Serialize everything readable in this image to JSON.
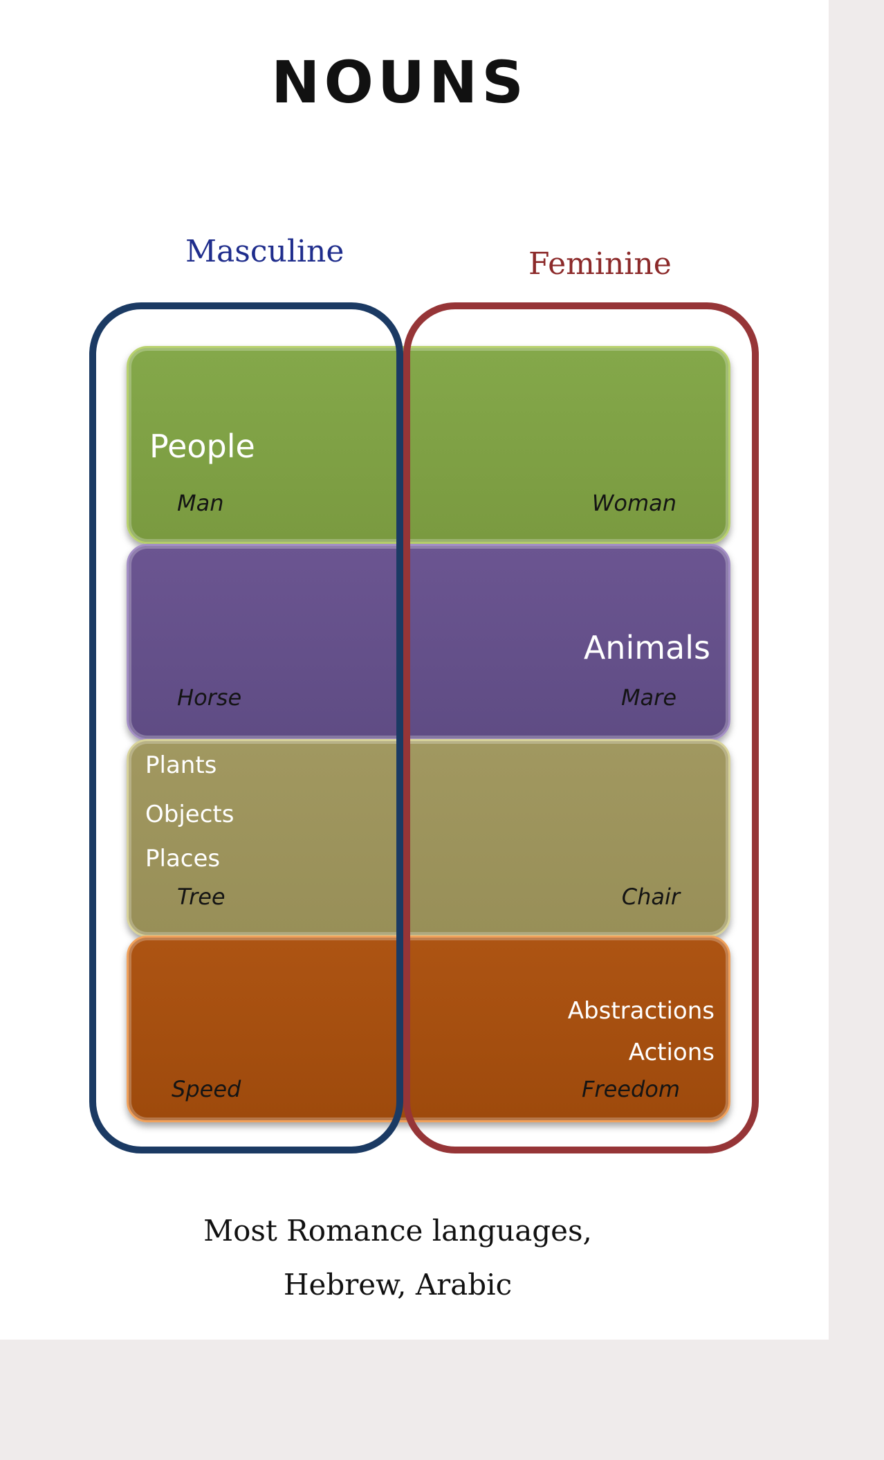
{
  "title": "NOUNS",
  "genders": {
    "masculine": "Masculine",
    "feminine": "Feminine"
  },
  "categories": [
    {
      "labels": [
        "People"
      ],
      "masculine_example": "Man",
      "feminine_example": "Woman"
    },
    {
      "labels": [
        "Animals"
      ],
      "masculine_example": "Horse",
      "feminine_example": "Mare"
    },
    {
      "labels": [
        "Plants",
        "Objects",
        "Places"
      ],
      "masculine_example": "Tree",
      "feminine_example": "Chair"
    },
    {
      "labels": [
        "Abstractions",
        "Actions"
      ],
      "masculine_example": "Speed",
      "feminine_example": "Freedom"
    }
  ],
  "footer": {
    "line1": "Most Romance languages,",
    "line2": "Hebrew, Arabic"
  },
  "colors": {
    "masculine_outline": "#1b3a63",
    "feminine_outline": "#963537",
    "people_band": "#7e9f44",
    "animals_band": "#654f8a",
    "plants_band": "#9e955c",
    "abstractions_band": "#a44f0e"
  }
}
